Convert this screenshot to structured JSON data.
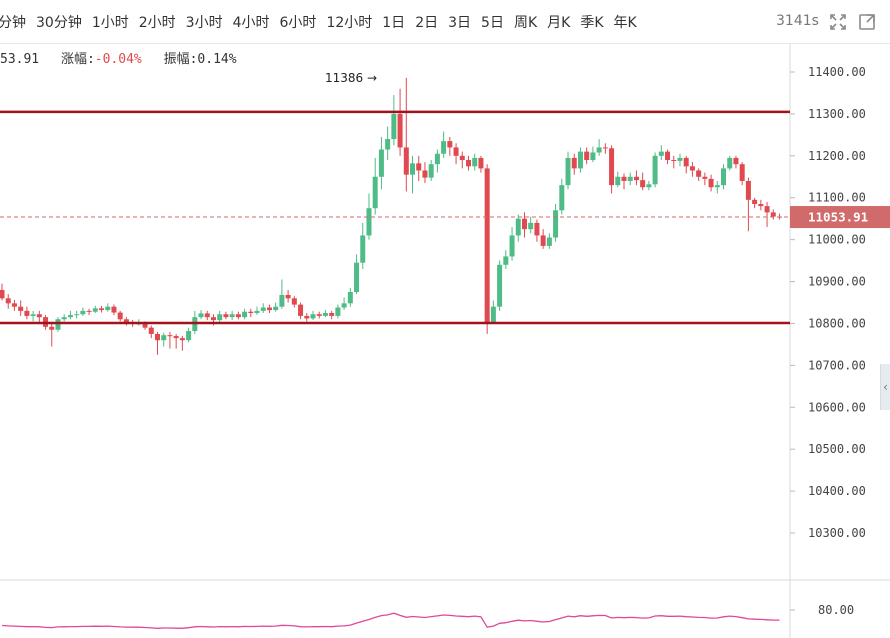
{
  "toolbar": {
    "timeframes": [
      "分钟",
      "30分钟",
      "1小时",
      "2小时",
      "3小时",
      "4小时",
      "6小时",
      "12小时",
      "1日",
      "2日",
      "3日",
      "5日",
      "周K",
      "月K",
      "季K",
      "年K"
    ],
    "timer": "3141s",
    "fullscreen_icon": "expand-icon",
    "settings_icon": "fullscreen-square-icon"
  },
  "info": {
    "price_partial": "53.91",
    "change_label": "涨幅:",
    "change_value": "-0.04%",
    "amplitude_label": "振幅:",
    "amplitude_value": "0.14%"
  },
  "colors": {
    "up": "#4fbb86",
    "down": "#e0494f",
    "horizontal_line": "#a3111b",
    "current_price_bg": "#d06a6b",
    "indicator": "#e0489a"
  },
  "annotation": {
    "high_label": "11386 →"
  },
  "current_price_label": "11053.91",
  "chart_data": {
    "type": "candlestick",
    "y_axis": {
      "ticks": [
        "11400.00",
        "11300.00",
        "11200.00",
        "11100.00",
        "11000.00",
        "10900.00",
        "10800.00",
        "10700.00",
        "10600.00",
        "10500.00",
        "10400.00",
        "10300.00"
      ],
      "range": [
        10180,
        11480
      ]
    },
    "horizontal_lines": [
      11305,
      10801
    ],
    "current_price": 11053.91,
    "high_marker": 11386,
    "candles": [
      [
        10880,
        10860,
        10895,
        10855
      ],
      [
        10860,
        10848,
        10870,
        10835
      ],
      [
        10848,
        10840,
        10856,
        10830
      ],
      [
        10840,
        10830,
        10855,
        10818
      ],
      [
        10830,
        10818,
        10840,
        10810
      ],
      [
        10818,
        10822,
        10830,
        10805
      ],
      [
        10822,
        10815,
        10830,
        10800
      ],
      [
        10815,
        10792,
        10820,
        10785
      ],
      [
        10792,
        10785,
        10800,
        10745
      ],
      [
        10785,
        10810,
        10815,
        10780
      ],
      [
        10810,
        10815,
        10822,
        10805
      ],
      [
        10815,
        10820,
        10830,
        10810
      ],
      [
        10820,
        10822,
        10830,
        10812
      ],
      [
        10822,
        10830,
        10838,
        10818
      ],
      [
        10830,
        10828,
        10835,
        10820
      ],
      [
        10828,
        10836,
        10842,
        10825
      ],
      [
        10836,
        10832,
        10842,
        10826
      ],
      [
        10832,
        10840,
        10848,
        10828
      ],
      [
        10840,
        10826,
        10845,
        10820
      ],
      [
        10826,
        10810,
        10830,
        10805
      ],
      [
        10810,
        10803,
        10815,
        10795
      ],
      [
        10803,
        10800,
        10808,
        10792
      ],
      [
        10800,
        10800,
        10810,
        10795
      ],
      [
        10800,
        10790,
        10805,
        10785
      ],
      [
        10790,
        10775,
        10795,
        10765
      ],
      [
        10775,
        10760,
        10780,
        10725
      ],
      [
        10760,
        10772,
        10778,
        10745
      ],
      [
        10772,
        10770,
        10780,
        10740
      ],
      [
        10770,
        10765,
        10775,
        10740
      ],
      [
        10765,
        10760,
        10770,
        10735
      ],
      [
        10760,
        10782,
        10790,
        10755
      ],
      [
        10782,
        10815,
        10830,
        10775
      ],
      [
        10815,
        10824,
        10832,
        10810
      ],
      [
        10824,
        10815,
        10830,
        10808
      ],
      [
        10815,
        10808,
        10822,
        10795
      ],
      [
        10808,
        10822,
        10830,
        10800
      ],
      [
        10822,
        10815,
        10828,
        10810
      ],
      [
        10815,
        10822,
        10830,
        10808
      ],
      [
        10822,
        10815,
        10828,
        10810
      ],
      [
        10815,
        10828,
        10835,
        10810
      ],
      [
        10828,
        10825,
        10835,
        10815
      ],
      [
        10825,
        10830,
        10840,
        10820
      ],
      [
        10830,
        10838,
        10848,
        10825
      ],
      [
        10838,
        10832,
        10845,
        10825
      ],
      [
        10832,
        10840,
        10850,
        10828
      ],
      [
        10840,
        10868,
        10905,
        10835
      ],
      [
        10868,
        10860,
        10880,
        10850
      ],
      [
        10860,
        10845,
        10865,
        10838
      ],
      [
        10845,
        10818,
        10850,
        10810
      ],
      [
        10818,
        10812,
        10825,
        10805
      ],
      [
        10812,
        10822,
        10830,
        10808
      ],
      [
        10822,
        10818,
        10828,
        10812
      ],
      [
        10818,
        10825,
        10832,
        10815
      ],
      [
        10825,
        10818,
        10830,
        10810
      ],
      [
        10818,
        10838,
        10845,
        10812
      ],
      [
        10838,
        10848,
        10862,
        10832
      ],
      [
        10848,
        10875,
        10885,
        10840
      ],
      [
        10875,
        10945,
        10965,
        10870
      ],
      [
        10945,
        11010,
        11040,
        10930
      ],
      [
        11010,
        11075,
        11110,
        11000
      ],
      [
        11075,
        11150,
        11195,
        11060
      ],
      [
        11150,
        11215,
        11245,
        11120
      ],
      [
        11215,
        11240,
        11270,
        11190
      ],
      [
        11240,
        11300,
        11345,
        11225
      ],
      [
        11300,
        11220,
        11360,
        11200
      ],
      [
        11220,
        11155,
        11386,
        11115
      ],
      [
        11155,
        11182,
        11200,
        11110
      ],
      [
        11182,
        11165,
        11200,
        11140
      ],
      [
        11165,
        11148,
        11185,
        11135
      ],
      [
        11148,
        11180,
        11190,
        11140
      ],
      [
        11180,
        11205,
        11215,
        11160
      ],
      [
        11205,
        11235,
        11258,
        11195
      ],
      [
        11235,
        11220,
        11245,
        11200
      ],
      [
        11220,
        11200,
        11230,
        11180
      ],
      [
        11200,
        11190,
        11210,
        11170
      ],
      [
        11190,
        11175,
        11200,
        11165
      ],
      [
        11175,
        11195,
        11205,
        11165
      ],
      [
        11195,
        11170,
        11200,
        11160
      ],
      [
        11170,
        10800,
        11180,
        10775
      ],
      [
        10800,
        10840,
        10855,
        10800
      ],
      [
        10840,
        10940,
        10950,
        10830
      ],
      [
        10940,
        10960,
        10975,
        10930
      ],
      [
        10960,
        11010,
        11030,
        10950
      ],
      [
        11010,
        11050,
        11060,
        10995
      ],
      [
        11050,
        11025,
        11065,
        11005
      ],
      [
        11025,
        11040,
        11055,
        11015
      ],
      [
        11040,
        11010,
        11048,
        10995
      ],
      [
        11010,
        10985,
        11025,
        10978
      ],
      [
        10985,
        11005,
        11015,
        10978
      ],
      [
        11005,
        11070,
        11085,
        10995
      ],
      [
        11070,
        11130,
        11145,
        11060
      ],
      [
        11130,
        11195,
        11210,
        11120
      ],
      [
        11195,
        11170,
        11205,
        11155
      ],
      [
        11170,
        11210,
        11220,
        11160
      ],
      [
        11210,
        11190,
        11220,
        11180
      ],
      [
        11190,
        11208,
        11222,
        11185
      ],
      [
        11208,
        11220,
        11240,
        11200
      ],
      [
        11220,
        11218,
        11230,
        11205
      ],
      [
        11218,
        11130,
        11225,
        11110
      ],
      [
        11130,
        11150,
        11162,
        11125
      ],
      [
        11150,
        11140,
        11158,
        11120
      ],
      [
        11140,
        11150,
        11160,
        11130
      ],
      [
        11150,
        11142,
        11165,
        11130
      ],
      [
        11142,
        11125,
        11160,
        11118
      ],
      [
        11125,
        11132,
        11140,
        11118
      ],
      [
        11132,
        11200,
        11208,
        11125
      ],
      [
        11200,
        11210,
        11225,
        11190
      ],
      [
        11210,
        11190,
        11215,
        11180
      ],
      [
        11190,
        11188,
        11200,
        11170
      ],
      [
        11188,
        11195,
        11205,
        11175
      ],
      [
        11195,
        11175,
        11200,
        11158
      ],
      [
        11175,
        11165,
        11185,
        11150
      ],
      [
        11165,
        11150,
        11170,
        11140
      ],
      [
        11150,
        11145,
        11160,
        11130
      ],
      [
        11145,
        11125,
        11155,
        11115
      ],
      [
        11125,
        11130,
        11140,
        11110
      ],
      [
        11130,
        11170,
        11180,
        11120
      ],
      [
        11170,
        11195,
        11200,
        11165
      ],
      [
        11195,
        11180,
        11200,
        11170
      ],
      [
        11180,
        11140,
        11185,
        11130
      ],
      [
        11140,
        11095,
        11148,
        11020
      ],
      [
        11095,
        11085,
        11100,
        11075
      ],
      [
        11085,
        11080,
        11095,
        11070
      ],
      [
        11080,
        11065,
        11090,
        11030
      ],
      [
        11065,
        11055,
        11072,
        11048
      ],
      [
        11055,
        11053.91,
        11062,
        11048
      ]
    ]
  },
  "indicator": {
    "label": "80.00"
  }
}
